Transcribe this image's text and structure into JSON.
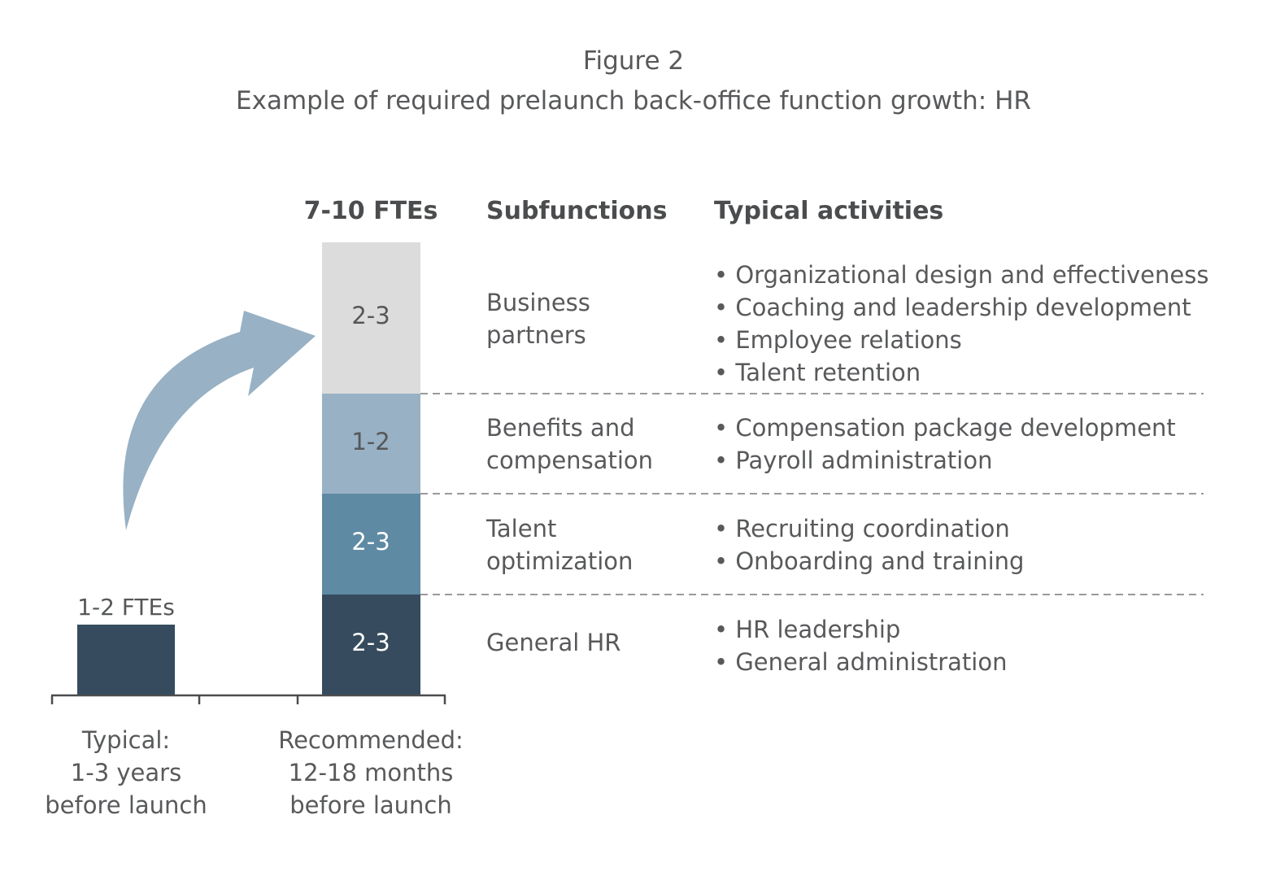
{
  "figure": {
    "label": "Figure 2",
    "title": "Example of required prelaunch back-office function growth: HR"
  },
  "headers": {
    "bar_total": "7-10 FTEs",
    "subfunctions": "Subfunctions",
    "activities": "Typical activities"
  },
  "colors": {
    "general_hr": "#364c5e",
    "talent": "#5f8aa3",
    "benefits": "#98b1c4",
    "business": "#dcdcdc",
    "arrow": "#98b1c4",
    "divider": "#9a9a9a",
    "axis": "#4a4c4e"
  },
  "chart_data": {
    "type": "bar",
    "categories": [
      "Typical: 1-3 years before launch",
      "Recommended: 12-18 months before launch"
    ],
    "x_labels": [
      [
        "Typical:",
        "1-3 years",
        "before launch"
      ],
      [
        "Recommended:",
        "12-18 months",
        "before launch"
      ]
    ],
    "typical": {
      "label": "1-2 FTEs",
      "range": [
        1,
        2
      ]
    },
    "recommended_total": "7-10 FTEs",
    "stack": [
      {
        "name": "General HR",
        "label": "2-3",
        "range": [
          2,
          3
        ]
      },
      {
        "name": "Talent optimization",
        "label": "2-3",
        "range": [
          2,
          3
        ]
      },
      {
        "name": "Benefits and compensation",
        "label": "1-2",
        "range": [
          1,
          2
        ]
      },
      {
        "name": "Business partners",
        "label": "2-3",
        "range": [
          2,
          3
        ]
      }
    ]
  },
  "rows": [
    {
      "sub_lines": [
        "Business",
        "partners"
      ],
      "activities": [
        "• Organizational design and effectiveness",
        "• Coaching and leadership development",
        "• Employee relations",
        "• Talent retention"
      ]
    },
    {
      "sub_lines": [
        "Benefits and",
        "compensation"
      ],
      "activities": [
        "• Compensation package development",
        "• Payroll administration"
      ]
    },
    {
      "sub_lines": [
        "Talent",
        "optimization"
      ],
      "activities": [
        "• Recruiting coordination",
        "• Onboarding and training"
      ]
    },
    {
      "sub_lines": [
        "General HR"
      ],
      "activities": [
        "• HR leadership",
        "• General administration"
      ]
    }
  ]
}
